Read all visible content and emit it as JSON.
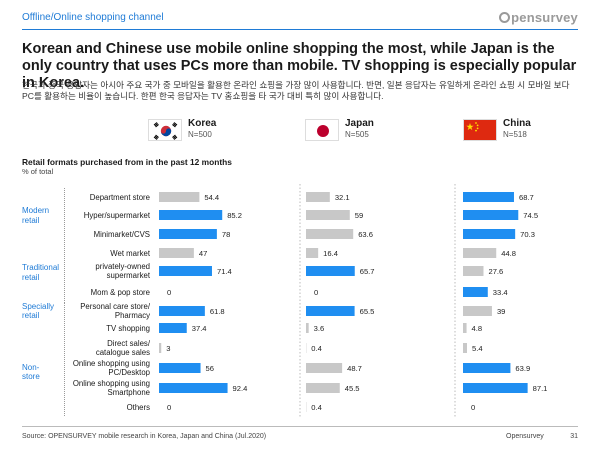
{
  "header": {
    "section_tag": "Offline/Online shopping channel",
    "brand": "pensurvey"
  },
  "headline": "Korean and Chinese use mobile online shopping the most, while Japan is the only country that uses PCs more than mobile. TV shopping is especially popular in Korea.",
  "subtext": "한국과 중국 응답자는 아시아 주요 국가 중 모바일을 활용한 온라인 쇼핑을 가장 많이 사용합니다. 반면, 일본 응답자는 유일하게 온라인 쇼핑 시 모바일 보다 PC를 활용하는 비율이 높습니다. 한편 한국 응답자는 TV 홈쇼핑을 타 국가 대비 특히 많이 사용합니다.",
  "countries": [
    {
      "name": "Korea",
      "n": "N=500"
    },
    {
      "name": "Japan",
      "n": "N=505"
    },
    {
      "name": "China",
      "n": "N=518"
    }
  ],
  "chart_data": {
    "type": "bar",
    "title": "Retail formats purchased from in the past 12 months",
    "subtitle": "% of total",
    "groups": [
      {
        "name": "Modern retail",
        "lines": [
          "Modern",
          "retail"
        ],
        "rows": [
          0,
          2
        ]
      },
      {
        "name": "Traditional retail",
        "lines": [
          "Traditional",
          "retail"
        ],
        "rows": [
          3,
          5
        ]
      },
      {
        "name": "Specially retail",
        "lines": [
          "Specially",
          "retail"
        ],
        "rows": [
          6,
          6
        ]
      },
      {
        "name": "Non-store",
        "lines": [
          "Non-store"
        ],
        "rows": [
          7,
          11
        ]
      }
    ],
    "categories": [
      [
        "Department store"
      ],
      [
        "Hyper/supermarket"
      ],
      [
        "Minimarket/CVS"
      ],
      [
        "Wet market"
      ],
      [
        "privately-owned",
        "supermarket"
      ],
      [
        "Mom & pop store"
      ],
      [
        "Personal care store/",
        "Pharmacy"
      ],
      [
        "TV shopping"
      ],
      [
        "Direct sales/",
        "catalogue sales"
      ],
      [
        "Online shopping using",
        "PC/Desktop"
      ],
      [
        "Online shopping using",
        "Smartphone"
      ],
      [
        "Others"
      ]
    ],
    "series": [
      {
        "name": "Korea",
        "values": [
          54.4,
          85.2,
          78,
          47,
          71.4,
          0,
          61.8,
          37.4,
          3,
          56,
          92.4,
          0
        ],
        "highlight": [
          false,
          true,
          true,
          false,
          true,
          false,
          true,
          true,
          false,
          true,
          true,
          false
        ]
      },
      {
        "name": "Japan",
        "values": [
          32.1,
          59,
          63.6,
          16.4,
          65.7,
          0,
          65.5,
          3.6,
          0.4,
          48.7,
          45.5,
          0.4
        ],
        "highlight": [
          false,
          false,
          false,
          false,
          true,
          false,
          true,
          false,
          false,
          false,
          false,
          false
        ]
      },
      {
        "name": "China",
        "values": [
          68.7,
          74.5,
          70.3,
          44.8,
          27.6,
          33.4,
          39,
          4.8,
          5.4,
          63.9,
          87.1,
          0
        ],
        "highlight": [
          true,
          true,
          true,
          false,
          false,
          true,
          false,
          false,
          false,
          true,
          true,
          false
        ]
      }
    ],
    "value_labels": [
      [
        "54.4",
        "85.2",
        "78",
        "47",
        "71.4",
        "0",
        "61.8",
        "37.4",
        "3",
        "56",
        "92.4",
        "0"
      ],
      [
        "32.1",
        "59",
        "63.6",
        "16.4",
        "65.7",
        "0",
        "65.5",
        "3.6",
        "0.4",
        "48.7",
        "45.5",
        "0.4"
      ],
      [
        "68.7",
        "74.5",
        "70.3",
        "44.8",
        "27.6",
        "33.4",
        "39",
        "4.8",
        "5.4",
        "63.9",
        "87.1",
        "0"
      ]
    ],
    "xlim": [
      0,
      100
    ],
    "colors": {
      "highlight": "#1f8ef1",
      "base": "#c8c8c8"
    }
  },
  "footer": {
    "source": "Source: OPENSURVEY mobile research in Korea, Japan and China (Jul.2020)",
    "brand": "Opensurvey",
    "page": "31"
  }
}
